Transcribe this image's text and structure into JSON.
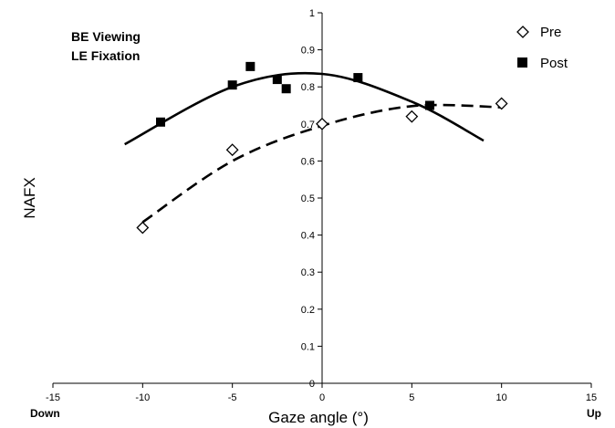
{
  "chart_data": {
    "type": "scatter",
    "xlabel": "Gaze angle (°)",
    "ylabel": "NAFX",
    "xlim": [
      -15,
      15
    ],
    "ylim": [
      0,
      1
    ],
    "x_ticks": [
      -15,
      -10,
      -5,
      0,
      5,
      10,
      15
    ],
    "y_ticks": [
      0,
      0.1,
      0.2,
      0.3,
      0.4,
      0.5,
      0.6,
      0.7,
      0.8,
      0.9,
      1
    ],
    "x_direction_labels": {
      "left": "Down",
      "right": "Up"
    },
    "annotations": [
      "BE Viewing",
      "LE Fixation"
    ],
    "grid": false,
    "legend_position": "top-right",
    "series": [
      {
        "name": "Pre",
        "marker": "open-diamond",
        "color": "#000000",
        "points": [
          {
            "x": -10,
            "y": 0.42
          },
          {
            "x": -5,
            "y": 0.63
          },
          {
            "x": 0,
            "y": 0.7
          },
          {
            "x": 5,
            "y": 0.72
          },
          {
            "x": 10,
            "y": 0.755
          }
        ],
        "trendline": {
          "style": "dashed",
          "x_range": [
            -10,
            10
          ],
          "points": [
            {
              "x": -10,
              "y": 0.435
            },
            {
              "x": -5,
              "y": 0.6
            },
            {
              "x": 0,
              "y": 0.695
            },
            {
              "x": 5,
              "y": 0.748
            },
            {
              "x": 10,
              "y": 0.745
            }
          ]
        }
      },
      {
        "name": "Post",
        "marker": "filled-square",
        "color": "#000000",
        "points": [
          {
            "x": -9,
            "y": 0.705
          },
          {
            "x": -5,
            "y": 0.805
          },
          {
            "x": -4,
            "y": 0.855
          },
          {
            "x": -2.5,
            "y": 0.82
          },
          {
            "x": -2,
            "y": 0.795
          },
          {
            "x": 2,
            "y": 0.825
          },
          {
            "x": 6,
            "y": 0.75
          }
        ],
        "trendline": {
          "style": "solid",
          "x_range": [
            -11,
            9
          ],
          "points": [
            {
              "x": -11,
              "y": 0.645
            },
            {
              "x": -5,
              "y": 0.8
            },
            {
              "x": 0,
              "y": 0.835
            },
            {
              "x": 5,
              "y": 0.76
            },
            {
              "x": 9,
              "y": 0.655
            }
          ]
        }
      }
    ]
  }
}
